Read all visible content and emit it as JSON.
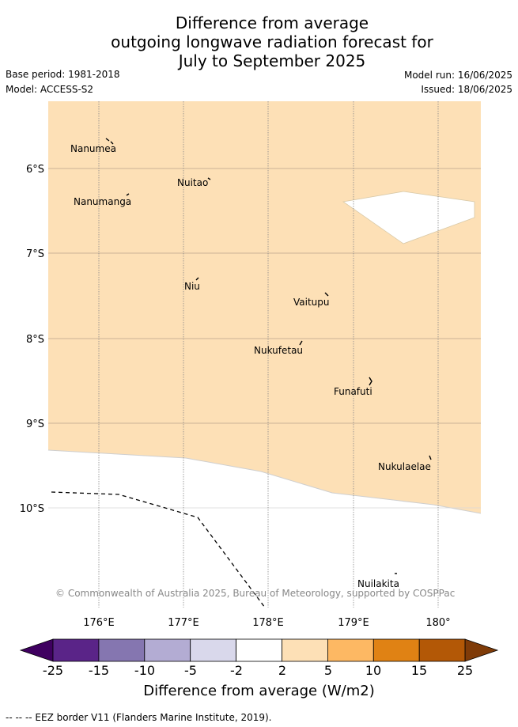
{
  "header": {
    "title_line1": "Difference from average",
    "title_line2": "outgoing longwave radiation forecast for",
    "title_line3": "July to September 2025",
    "base_period": "Base period: 1981-2018",
    "model": "Model: ACCESS-S2",
    "model_run": "Model run: 16/06/2025",
    "issued": "Issued: 18/06/2025"
  },
  "map": {
    "lat_ticks": [
      "6°S",
      "7°S",
      "8°S",
      "9°S",
      "10°S"
    ],
    "lon_ticks": [
      "176°E",
      "177°E",
      "178°E",
      "179°E",
      "180°"
    ],
    "places": [
      "Nanumea",
      "Nuitao",
      "Nanumanga",
      "Niu",
      "Vaitupu",
      "Nukufetau",
      "Funafuti",
      "Nukulaelae",
      "Nuilakita"
    ],
    "copyright": "© Commonwealth of Australia 2025, Bureau of Meteorology, supported by COSPPac",
    "fill_color": "#fde0b6"
  },
  "colorbar": {
    "labels": [
      "-25",
      "-15",
      "-10",
      "-5",
      "-2",
      "2",
      "5",
      "10",
      "15",
      "25"
    ],
    "colors": [
      "#3f0060",
      "#5a2488",
      "#8576b0",
      "#b3acd3",
      "#d9d8eb",
      "#ffffff",
      "#fde0b6",
      "#fdb863",
      "#e08214",
      "#b35806",
      "#7f3b08"
    ],
    "title": "Difference from average (W/m2)"
  },
  "footer": {
    "legend": "-- -- -- EEZ border V11 (Flanders Marine Institute, 2019)."
  }
}
